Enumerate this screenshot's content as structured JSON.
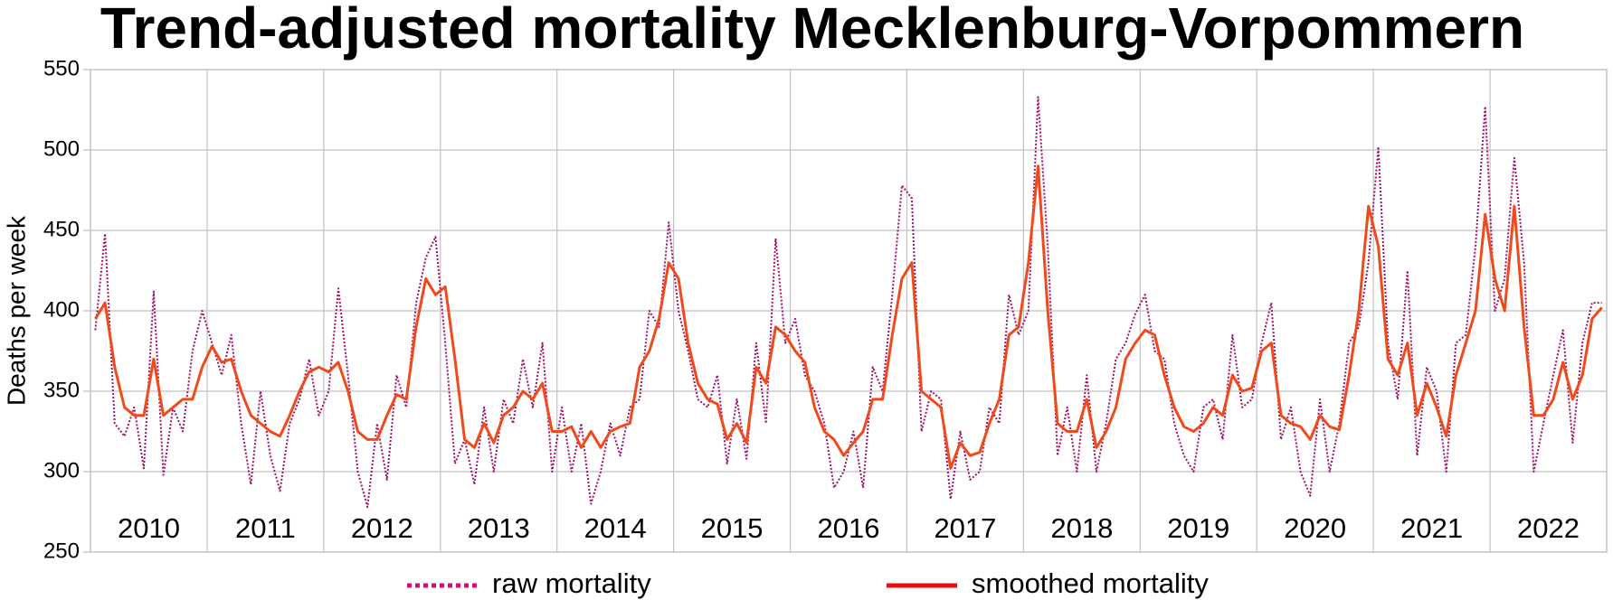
{
  "chart_data": {
    "type": "line",
    "title": "Trend-adjusted mortality Mecklenburg-Vorpommern",
    "y_label": "Deaths per week",
    "categories": [
      "2010",
      "2011",
      "2012",
      "2013",
      "2014",
      "2015",
      "2016",
      "2017",
      "2018",
      "2019",
      "2020",
      "2021",
      "2022"
    ],
    "x": [
      2010.042,
      2010.125,
      2010.208,
      2010.292,
      2010.375,
      2010.458,
      2010.542,
      2010.625,
      2010.708,
      2010.792,
      2010.875,
      2010.958,
      2011.042,
      2011.125,
      2011.208,
      2011.292,
      2011.375,
      2011.458,
      2011.542,
      2011.625,
      2011.708,
      2011.792,
      2011.875,
      2011.958,
      2012.042,
      2012.125,
      2012.208,
      2012.292,
      2012.375,
      2012.458,
      2012.542,
      2012.625,
      2012.708,
      2012.792,
      2012.875,
      2012.958,
      2013.042,
      2013.125,
      2013.208,
      2013.292,
      2013.375,
      2013.458,
      2013.542,
      2013.625,
      2013.708,
      2013.792,
      2013.875,
      2013.958,
      2014.042,
      2014.125,
      2014.208,
      2014.292,
      2014.375,
      2014.458,
      2014.542,
      2014.625,
      2014.708,
      2014.792,
      2014.875,
      2014.958,
      2015.042,
      2015.125,
      2015.208,
      2015.292,
      2015.375,
      2015.458,
      2015.542,
      2015.625,
      2015.708,
      2015.792,
      2015.875,
      2015.958,
      2016.042,
      2016.125,
      2016.208,
      2016.292,
      2016.375,
      2016.458,
      2016.542,
      2016.625,
      2016.708,
      2016.792,
      2016.875,
      2016.958,
      2017.042,
      2017.125,
      2017.208,
      2017.292,
      2017.375,
      2017.458,
      2017.542,
      2017.625,
      2017.708,
      2017.792,
      2017.875,
      2017.958,
      2018.042,
      2018.125,
      2018.208,
      2018.292,
      2018.375,
      2018.458,
      2018.542,
      2018.625,
      2018.708,
      2018.792,
      2018.875,
      2018.958,
      2019.042,
      2019.125,
      2019.208,
      2019.292,
      2019.375,
      2019.458,
      2019.542,
      2019.625,
      2019.708,
      2019.792,
      2019.875,
      2019.958,
      2020.042,
      2020.125,
      2020.208,
      2020.292,
      2020.375,
      2020.458,
      2020.542,
      2020.625,
      2020.708,
      2020.792,
      2020.875,
      2020.958,
      2021.042,
      2021.125,
      2021.208,
      2021.292,
      2021.375,
      2021.458,
      2021.542,
      2021.625,
      2021.708,
      2021.792,
      2021.875,
      2021.958,
      2022.042,
      2022.125,
      2022.208,
      2022.292,
      2022.375,
      2022.458,
      2022.542,
      2022.625,
      2022.708,
      2022.792,
      2022.875,
      2022.958
    ],
    "series": [
      {
        "name": "raw mortality",
        "color": "#a0106a",
        "legend_color": "#d0107a",
        "dash": true,
        "values": [
          388,
          448,
          330,
          322,
          340,
          302,
          412,
          298,
          340,
          325,
          375,
          400,
          380,
          360,
          385,
          330,
          292,
          350,
          310,
          288,
          330,
          345,
          370,
          335,
          350,
          414,
          360,
          300,
          278,
          330,
          295,
          360,
          340,
          405,
          433,
          446,
          380,
          305,
          320,
          292,
          340,
          300,
          345,
          330,
          370,
          340,
          380,
          300,
          340,
          300,
          330,
          280,
          300,
          330,
          310,
          340,
          345,
          400,
          390,
          455,
          400,
          375,
          345,
          340,
          360,
          305,
          345,
          308,
          380,
          330,
          445,
          380,
          395,
          360,
          350,
          330,
          290,
          300,
          325,
          290,
          365,
          350,
          410,
          478,
          470,
          325,
          350,
          345,
          283,
          325,
          295,
          300,
          340,
          330,
          410,
          385,
          400,
          533,
          440,
          310,
          340,
          300,
          360,
          300,
          330,
          370,
          380,
          398,
          410,
          375,
          370,
          330,
          310,
          300,
          340,
          345,
          320,
          385,
          340,
          345,
          380,
          405,
          320,
          340,
          300,
          285,
          345,
          300,
          330,
          380,
          390,
          430,
          502,
          380,
          345,
          425,
          310,
          365,
          350,
          300,
          380,
          385,
          440,
          527,
          400,
          420,
          495,
          430,
          300,
          330,
          360,
          388,
          318,
          380,
          405,
          405
        ]
      },
      {
        "name": "smoothed mortality",
        "color": "#f04a1c",
        "legend_color": "#e81010",
        "dash": false,
        "values": [
          395,
          405,
          365,
          340,
          335,
          335,
          370,
          335,
          340,
          345,
          345,
          365,
          378,
          368,
          370,
          350,
          335,
          330,
          325,
          322,
          335,
          350,
          362,
          365,
          362,
          368,
          350,
          325,
          320,
          320,
          335,
          348,
          345,
          390,
          420,
          410,
          415,
          370,
          320,
          315,
          330,
          318,
          335,
          340,
          350,
          345,
          355,
          325,
          325,
          328,
          315,
          325,
          315,
          325,
          328,
          330,
          365,
          375,
          395,
          430,
          420,
          380,
          355,
          345,
          342,
          320,
          330,
          318,
          365,
          355,
          390,
          385,
          375,
          368,
          340,
          325,
          320,
          310,
          318,
          325,
          345,
          345,
          385,
          420,
          430,
          350,
          345,
          340,
          302,
          318,
          310,
          312,
          330,
          345,
          385,
          390,
          430,
          490,
          400,
          330,
          325,
          325,
          345,
          315,
          325,
          340,
          370,
          380,
          388,
          385,
          360,
          340,
          328,
          325,
          330,
          340,
          335,
          360,
          350,
          352,
          375,
          380,
          335,
          330,
          328,
          320,
          335,
          328,
          326,
          360,
          400,
          465,
          440,
          370,
          360,
          380,
          335,
          355,
          340,
          322,
          360,
          380,
          400,
          460,
          420,
          400,
          465,
          390,
          335,
          335,
          345,
          368,
          345,
          360,
          395,
          402
        ]
      }
    ],
    "xlim": [
      2010,
      2023
    ],
    "xticks": [
      2010,
      2011,
      2012,
      2013,
      2014,
      2015,
      2016,
      2017,
      2018,
      2019,
      2020,
      2021,
      2022,
      2023
    ],
    "ylim": [
      250,
      550
    ],
    "yticks": [
      250,
      300,
      350,
      400,
      450,
      500,
      550
    ],
    "grid": true
  }
}
